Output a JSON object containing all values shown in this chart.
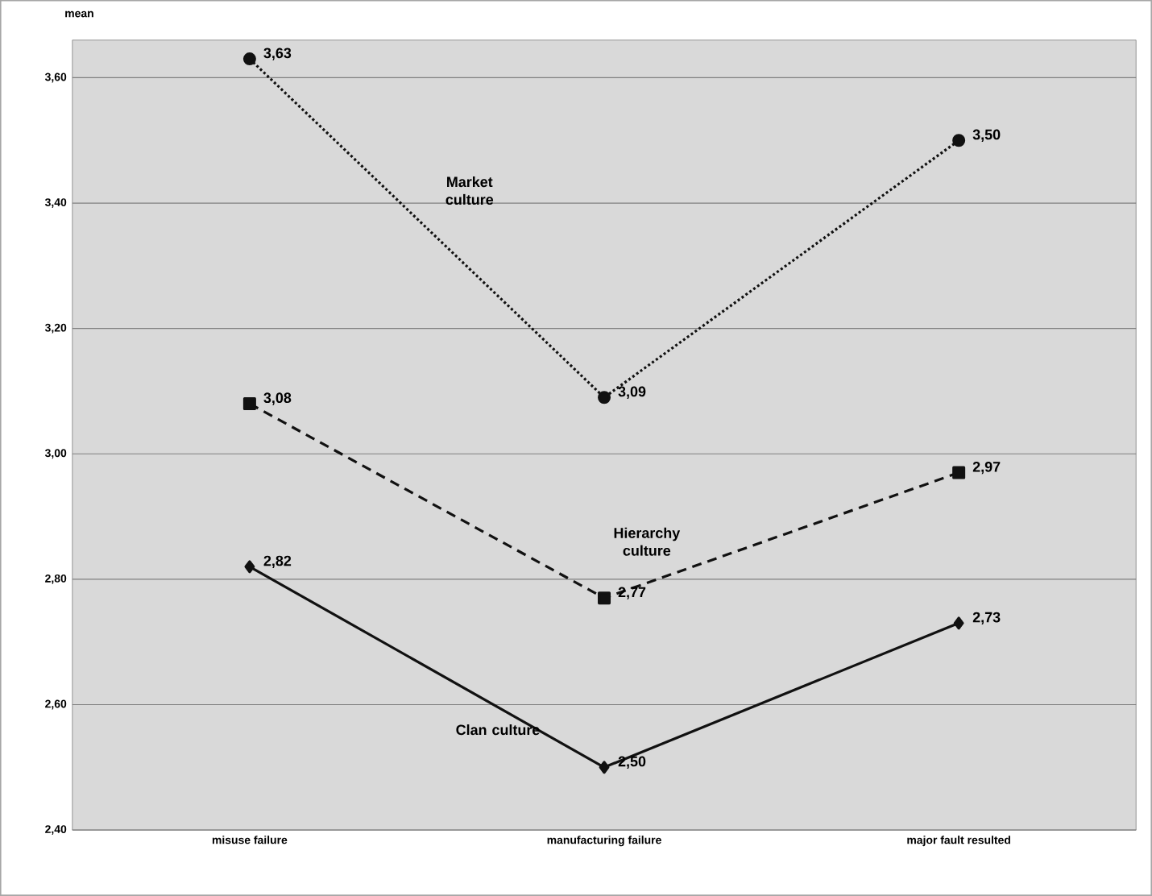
{
  "chart_data": {
    "type": "line",
    "ylabel": "mean",
    "categories": [
      "misuse failure",
      "manufacturing failure",
      "major fault resulted"
    ],
    "series": [
      {
        "name": "Market culture",
        "color": "#111111",
        "values": [
          3.63,
          3.09,
          3.5
        ],
        "value_labels": [
          "3,63",
          "3,09",
          "3,50"
        ],
        "marker": "circle",
        "line_style": "dotted"
      },
      {
        "name": "Hierarchy culture",
        "color": "#111111",
        "values": [
          3.08,
          2.77,
          2.97
        ],
        "value_labels": [
          "3,08",
          "2,77",
          "2,97"
        ],
        "marker": "square",
        "line_style": "dashed"
      },
      {
        "name": "Clan culture",
        "color": "#111111",
        "values": [
          2.82,
          2.5,
          2.73
        ],
        "value_labels": [
          "2,82",
          "2,50",
          "2,73"
        ],
        "marker": "diamond",
        "line_style": "solid"
      }
    ],
    "ylim": [
      2.4,
      3.66
    ],
    "yticks": [
      {
        "value": 2.4,
        "label": "2,40"
      },
      {
        "value": 2.6,
        "label": "2,60"
      },
      {
        "value": 2.8,
        "label": "2,80"
      },
      {
        "value": 3.0,
        "label": "3,00"
      },
      {
        "value": 3.2,
        "label": "3,20"
      },
      {
        "value": 3.4,
        "label": "3,40"
      },
      {
        "value": 3.6,
        "label": "3,60"
      }
    ],
    "grid": "y"
  }
}
